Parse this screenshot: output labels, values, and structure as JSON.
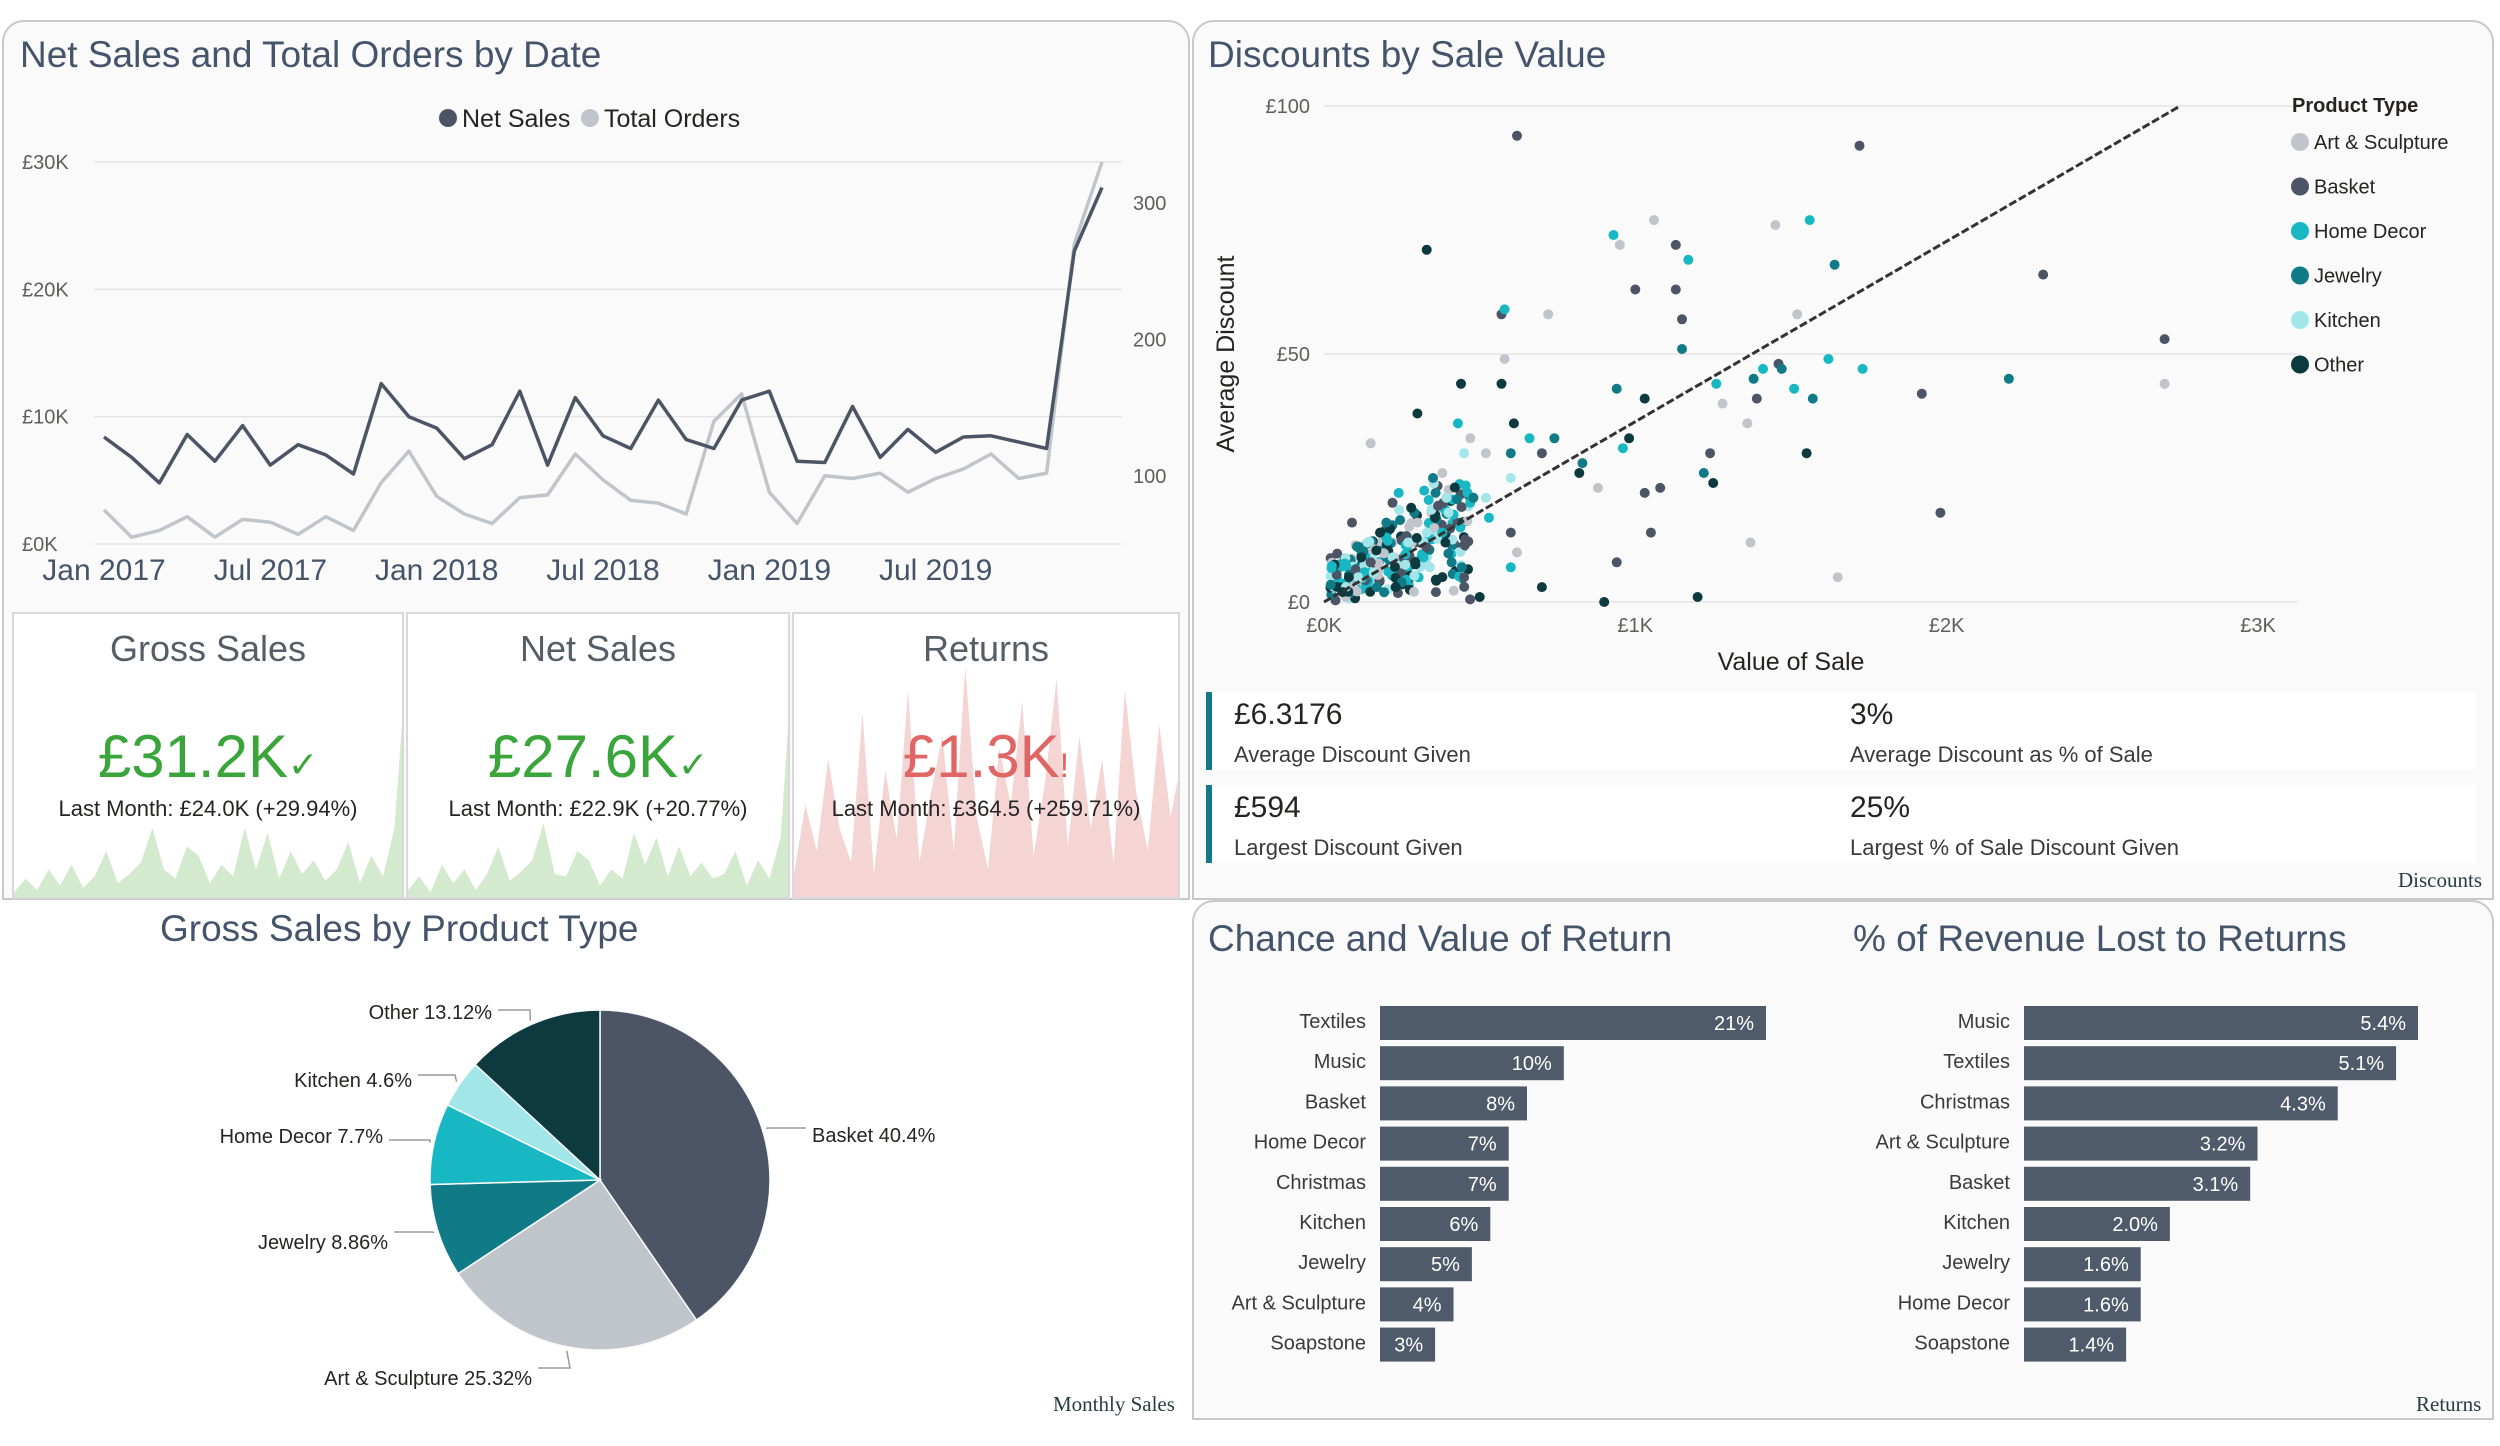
{
  "colors": {
    "net_sales": "#4c5565",
    "total_orders": "#c0c5cc",
    "green": "#3aa53a",
    "red": "#e06666",
    "bar": "#4f5a6b",
    "teal": "#117a87",
    "accent_footer": "#253e44"
  },
  "line_chart": {
    "title": "Net Sales and Total Orders by Date",
    "legend": [
      "Net Sales",
      "Total Orders"
    ]
  },
  "kpi_cards": {
    "gross": {
      "title": "Gross Sales",
      "value": "£31.2K",
      "status_icon": "check-icon",
      "sub": "Last Month: £24.0K (+29.94%)"
    },
    "net": {
      "title": "Net Sales",
      "value": "£27.6K",
      "status_icon": "check-icon",
      "sub": "Last Month: £22.9K (+20.77%)"
    },
    "returns": {
      "title": "Returns",
      "value": "£1.3K",
      "status_icon": "exclamation-icon",
      "sub": "Last Month: £364.5 (+259.71%)"
    }
  },
  "pie": {
    "title": "Gross Sales by Product Type",
    "footer": "Monthly Sales"
  },
  "scatter": {
    "title": "Discounts by Sale Value",
    "legend_title": "Product Type",
    "footer": "Discounts"
  },
  "discount_kpis": [
    {
      "value": "£6.3176",
      "label": "Average Discount Given"
    },
    {
      "value": "3%",
      "label": "Average Discount as % of Sale"
    },
    {
      "value": "£594",
      "label": "Largest Discount Given"
    },
    {
      "value": "25%",
      "label": "Largest % of Sale Discount Given"
    }
  ],
  "returns_panel": {
    "chance_title": "Chance and Value of Return",
    "revenue_title": "% of Revenue Lost to Returns",
    "footer": "Returns"
  },
  "chart_data": [
    {
      "type": "line",
      "title": "Net Sales and Total Orders by Date",
      "x_ticks": [
        "Jan 2017",
        "Jul 2017",
        "Jan 2018",
        "Jul 2018",
        "Jan 2019",
        "Jul 2019"
      ],
      "y_left_ticks": [
        "£0K",
        "£10K",
        "£20K",
        "£30K"
      ],
      "y_left_lim": [
        0,
        30000
      ],
      "y_right_ticks": [
        "100",
        "200",
        "300"
      ],
      "y_right_lim": [
        50,
        330
      ],
      "x_lim": [
        "2017-01",
        "2019-12"
      ],
      "series": [
        {
          "name": "Net Sales",
          "axis": "left",
          "values": [
            8400,
            6800,
            4800,
            8600,
            6500,
            9300,
            6200,
            7800,
            7000,
            5500,
            12600,
            10000,
            9100,
            6700,
            7800,
            12000,
            6200,
            11500,
            8500,
            7500,
            11300,
            8200,
            7500,
            11300,
            12000,
            6500,
            6400,
            10800,
            6800,
            9000,
            7200,
            8400,
            8500,
            8000,
            7500,
            23000,
            28000
          ]
        },
        {
          "name": "Total Orders",
          "axis": "right",
          "values": [
            75,
            55,
            60,
            70,
            55,
            68,
            66,
            57,
            70,
            60,
            95,
            118,
            85,
            72,
            65,
            84,
            86,
            116,
            97,
            82,
            80,
            72,
            140,
            160,
            88,
            65,
            100,
            98,
            102,
            88,
            98,
            105,
            116,
            98,
            102,
            270,
            330
          ]
        }
      ]
    },
    {
      "type": "pie",
      "title": "Gross Sales by Product Type",
      "categories": [
        "Basket",
        "Art & Sculpture",
        "Jewelry",
        "Home Decor",
        "Kitchen",
        "Other"
      ],
      "labels": [
        "Basket 40.4%",
        "Art & Sculpture 25.32%",
        "Jewelry 8.86%",
        "Home Decor 7.7%",
        "Kitchen 4.6%",
        "Other 13.12%"
      ],
      "values": [
        40.4,
        25.32,
        8.86,
        7.7,
        4.6,
        13.12
      ],
      "colors": [
        "#4c5565",
        "#c0c5cc",
        "#117a87",
        "#17b8c3",
        "#a3e6ea",
        "#0c3a3f"
      ]
    },
    {
      "type": "scatter",
      "title": "Discounts by Sale Value",
      "xlabel": "Value of Sale",
      "ylabel": "Average Discount",
      "x_ticks": [
        "£0K",
        "£1K",
        "£2K",
        "£3K"
      ],
      "y_ticks": [
        "£0",
        "£50",
        "£100"
      ],
      "xlim": [
        0,
        3000
      ],
      "ylim": [
        0,
        100
      ],
      "trend_line": [
        [
          0,
          0
        ],
        [
          2750,
          100
        ]
      ],
      "series": [
        {
          "name": "Art & Sculpture",
          "color": "#c0c5cc",
          "points": [
            [
              950,
              72
            ],
            [
              1060,
              77
            ],
            [
              580,
              49
            ],
            [
              720,
              58
            ],
            [
              1450,
              76
            ],
            [
              1520,
              58
            ],
            [
              2700,
              44
            ],
            [
              1360,
              36
            ],
            [
              1280,
              40
            ],
            [
              1650,
              5
            ],
            [
              150,
              32
            ],
            [
              380,
              26
            ],
            [
              1370,
              12
            ],
            [
              880,
              23
            ],
            [
              470,
              33
            ],
            [
              300,
              16
            ],
            [
              620,
              10
            ],
            [
              520,
              30
            ]
          ]
        },
        {
          "name": "Basket",
          "color": "#4c5565",
          "points": [
            [
              620,
              94
            ],
            [
              1720,
              92
            ],
            [
              1130,
              72
            ],
            [
              1130,
              63
            ],
            [
              2310,
              66
            ],
            [
              2700,
              53
            ],
            [
              1000,
              63
            ],
            [
              570,
              58
            ],
            [
              1150,
              57
            ],
            [
              1460,
              48
            ],
            [
              1920,
              42
            ],
            [
              1390,
              41
            ],
            [
              1030,
              22
            ],
            [
              1980,
              18
            ],
            [
              700,
              30
            ],
            [
              1080,
              23
            ],
            [
              1240,
              30
            ],
            [
              940,
              8
            ],
            [
              1050,
              14
            ],
            [
              450,
              5
            ],
            [
              330,
              11
            ],
            [
              220,
              20
            ],
            [
              600,
              14
            ],
            [
              150,
              8
            ],
            [
              90,
              16
            ]
          ]
        },
        {
          "name": "Home Decor",
          "color": "#17b8c3",
          "points": [
            [
              930,
              74
            ],
            [
              1170,
              69
            ],
            [
              1560,
              77
            ],
            [
              580,
              59
            ],
            [
              1260,
              44
            ],
            [
              1410,
              47
            ],
            [
              1510,
              43
            ],
            [
              1620,
              49
            ],
            [
              1730,
              47
            ],
            [
              430,
              36
            ],
            [
              660,
              33
            ],
            [
              960,
              31
            ],
            [
              240,
              22
            ],
            [
              470,
              20
            ],
            [
              530,
              17
            ],
            [
              320,
              9
            ],
            [
              200,
              13
            ],
            [
              380,
              14
            ],
            [
              130,
              6
            ],
            [
              600,
              7
            ]
          ]
        },
        {
          "name": "Jewelry",
          "color": "#117a87",
          "points": [
            [
              1150,
              51
            ],
            [
              1640,
              68
            ],
            [
              1470,
              47
            ],
            [
              1380,
              45
            ],
            [
              940,
              43
            ],
            [
              1570,
              41
            ],
            [
              1220,
              26
            ],
            [
              2200,
              45
            ],
            [
              740,
              33
            ],
            [
              600,
              30
            ],
            [
              830,
              28
            ],
            [
              350,
              25
            ],
            [
              480,
              21
            ],
            [
              200,
              16
            ],
            [
              290,
              18
            ],
            [
              110,
              11
            ],
            [
              410,
              8
            ],
            [
              250,
              4
            ],
            [
              170,
              3
            ]
          ]
        },
        {
          "name": "Kitchen",
          "color": "#a3e6ea",
          "points": [
            [
              520,
              21
            ],
            [
              400,
              18
            ],
            [
              330,
              14
            ],
            [
              270,
              12
            ],
            [
              220,
              9
            ],
            [
              160,
              6
            ],
            [
              110,
              5
            ],
            [
              70,
              3
            ],
            [
              600,
              25
            ],
            [
              450,
              30
            ],
            [
              140,
              12
            ],
            [
              340,
              7
            ]
          ]
        },
        {
          "name": "Other",
          "color": "#0c3a3f",
          "points": [
            [
              330,
              71
            ],
            [
              570,
              44
            ],
            [
              440,
              44
            ],
            [
              300,
              38
            ],
            [
              1030,
              41
            ],
            [
              610,
              36
            ],
            [
              1550,
              30
            ],
            [
              980,
              33
            ],
            [
              820,
              26
            ],
            [
              1250,
              24
            ],
            [
              280,
              19
            ],
            [
              180,
              14
            ],
            [
              80,
              5
            ],
            [
              60,
              2
            ],
            [
              120,
              9
            ],
            [
              230,
              3
            ],
            [
              390,
              12
            ],
            [
              500,
              1
            ],
            [
              700,
              3
            ],
            [
              900,
              0
            ],
            [
              1200,
              1
            ]
          ]
        }
      ]
    },
    {
      "type": "bar",
      "orientation": "horizontal",
      "title": "Chance and Value of Return",
      "categories": [
        "Textiles",
        "Music",
        "Basket",
        "Home Decor",
        "Christmas",
        "Kitchen",
        "Jewelry",
        "Art & Sculpture",
        "Soapstone"
      ],
      "values": [
        21,
        10,
        8,
        7,
        7,
        6,
        5,
        4,
        3
      ],
      "labels": [
        "21%",
        "10%",
        "8%",
        "7%",
        "7%",
        "6%",
        "5%",
        "4%",
        "3%"
      ]
    },
    {
      "type": "bar",
      "orientation": "horizontal",
      "title": "% of Revenue Lost to Returns",
      "categories": [
        "Music",
        "Textiles",
        "Christmas",
        "Art & Sculpture",
        "Basket",
        "Kitchen",
        "Jewelry",
        "Home Decor",
        "Soapstone"
      ],
      "values": [
        5.4,
        5.1,
        4.3,
        3.2,
        3.1,
        2.0,
        1.6,
        1.6,
        1.4
      ],
      "labels": [
        "5.4%",
        "5.1%",
        "4.3%",
        "3.2%",
        "3.1%",
        "2.0%",
        "1.6%",
        "1.6%",
        "1.4%"
      ]
    }
  ]
}
